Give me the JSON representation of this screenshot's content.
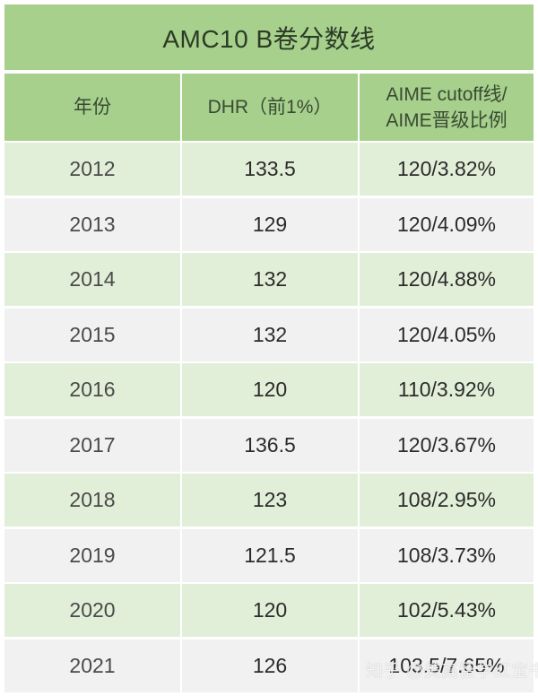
{
  "title": "AMC10 B卷分数线",
  "headers": {
    "year": "年份",
    "dhr": "DHR（前1%）",
    "aime_line1": "AIME cutoff线/",
    "aime_line2": "AIME晋级比例"
  },
  "rows": [
    {
      "year": "2012",
      "dhr": "133.5",
      "aime": "120/3.82%"
    },
    {
      "year": "2013",
      "dhr": "129",
      "aime": "120/4.09%"
    },
    {
      "year": "2014",
      "dhr": "132",
      "aime": "120/4.88%"
    },
    {
      "year": "2015",
      "dhr": "132",
      "aime": "120/4.05%"
    },
    {
      "year": "2016",
      "dhr": "120",
      "aime": "110/3.92%"
    },
    {
      "year": "2017",
      "dhr": "136.5",
      "aime": "120/3.67%"
    },
    {
      "year": "2018",
      "dhr": "123",
      "aime": "108/2.95%"
    },
    {
      "year": "2019",
      "dhr": "121.5",
      "aime": "108/3.73%"
    },
    {
      "year": "2020",
      "dhr": "120",
      "aime": "102/5.43%"
    },
    {
      "year": "2021",
      "dhr": "126",
      "aime": "103.5/7.65%"
    }
  ],
  "watermark": "知乎 @美高留学红宝书",
  "colors": {
    "header_green": "#a6d08c",
    "row_green": "#e1efd8",
    "row_gray": "#f1f1f1"
  }
}
